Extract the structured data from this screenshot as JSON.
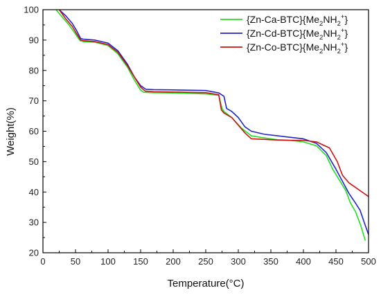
{
  "chart_data": {
    "type": "line",
    "xlabel": "Temperature(°C)",
    "ylabel": "Weight(%)",
    "xlim": [
      0,
      500
    ],
    "ylim": [
      20,
      100
    ],
    "xticks": [
      0,
      50,
      100,
      150,
      200,
      250,
      300,
      350,
      400,
      450,
      500
    ],
    "yticks": [
      20,
      30,
      40,
      50,
      60,
      70,
      80,
      90,
      100
    ],
    "grid": false,
    "legend_position": "top-right",
    "series": [
      {
        "name": "{Zn-Ca-BTC}{Me2NH2+}",
        "name_parts": {
          "pre": "{Zn-Ca-BTC}{Me",
          "sub1": "2",
          "mid": "NH",
          "sub2": "2",
          "sup": "+",
          "post": "}"
        },
        "color": "#22dd22",
        "x": [
          20,
          30,
          40,
          50,
          57,
          62,
          80,
          100,
          115,
          130,
          140,
          150,
          155,
          170,
          200,
          250,
          270,
          275,
          278,
          290,
          305,
          320,
          340,
          360,
          380,
          400,
          420,
          435,
          445,
          455,
          465,
          472,
          480,
          488,
          495
        ],
        "y": [
          100,
          97.5,
          95,
          92,
          89.8,
          89.5,
          89.3,
          88.2,
          85.5,
          81,
          77,
          73.5,
          72.8,
          72.7,
          72.6,
          72.3,
          71.8,
          67.5,
          66.5,
          64.5,
          61,
          58.5,
          57.8,
          57.2,
          57,
          56.5,
          55.2,
          52,
          47.5,
          44,
          40.5,
          36.5,
          33.5,
          29,
          24
        ]
      },
      {
        "name": "{Zn-Cd-BTC}{Me2NH2+}",
        "name_parts": {
          "pre": "{Zn-Cd-BTC}{Me",
          "sub1": "2",
          "mid": "NH",
          "sub2": "2",
          "sup": "+",
          "post": "}"
        },
        "color": "#2222cc",
        "x": [
          25,
          35,
          45,
          52,
          58,
          62,
          80,
          100,
          115,
          130,
          140,
          150,
          158,
          170,
          200,
          250,
          270,
          278,
          282,
          290,
          300,
          310,
          320,
          340,
          360,
          380,
          400,
          420,
          435,
          450,
          460,
          470,
          478,
          487,
          495,
          500
        ],
        "y": [
          100,
          98,
          95.5,
          93,
          90.5,
          90.3,
          90,
          89,
          86.5,
          82,
          78,
          75,
          73.8,
          73.7,
          73.6,
          73.4,
          72.6,
          71.5,
          67.5,
          66.5,
          64.5,
          61.5,
          60,
          59,
          58.5,
          58,
          57.5,
          56,
          53,
          47.5,
          43.5,
          39.5,
          37,
          34,
          29,
          26
        ]
      },
      {
        "name": "{Zn-Co-BTC}{Me2NH2+}",
        "name_parts": {
          "pre": "{Zn-Co-BTC}{Me",
          "sub1": "2",
          "mid": "NH",
          "sub2": "2",
          "sup": "+",
          "post": "}"
        },
        "color": "#cc1111",
        "x": [
          25,
          35,
          45,
          52,
          58,
          62,
          80,
          100,
          115,
          130,
          140,
          150,
          157,
          170,
          200,
          250,
          270,
          274,
          278,
          290,
          300,
          310,
          320,
          340,
          360,
          380,
          400,
          420,
          440,
          452,
          460,
          470,
          480,
          490,
          500
        ],
        "y": [
          100,
          97,
          94.5,
          92,
          90,
          89.8,
          89.5,
          88.5,
          86,
          81.5,
          78,
          74.5,
          73.2,
          73,
          72.9,
          72.7,
          72,
          67,
          66,
          64.5,
          62,
          59.5,
          57.5,
          57.3,
          57.1,
          57,
          57,
          56.5,
          54.5,
          50,
          45.5,
          43,
          41.5,
          40,
          38.5
        ]
      }
    ]
  }
}
